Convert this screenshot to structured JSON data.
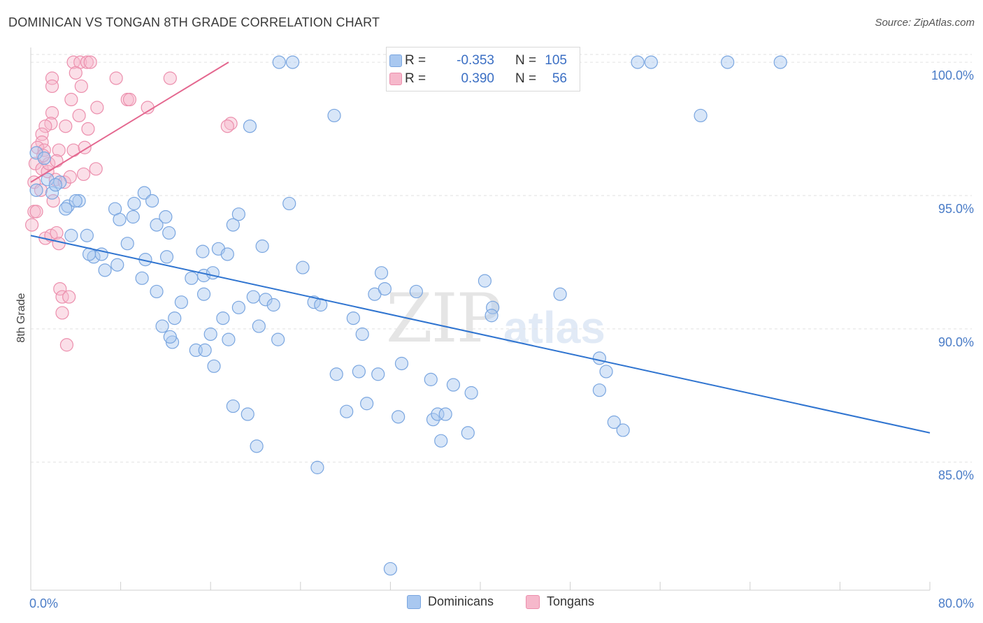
{
  "header": {
    "title": "DOMINICAN VS TONGAN 8TH GRADE CORRELATION CHART",
    "source": "Source: ZipAtlas.com"
  },
  "watermark": {
    "zip": "ZIP",
    "atlas": "atlas"
  },
  "legend_top": {
    "rows": [
      {
        "r_label": "R =",
        "r_value": "-0.353",
        "n_label": "N =",
        "n_value": "105"
      },
      {
        "r_label": "R =",
        "r_value": "0.390",
        "n_label": "N =",
        "n_value": "56"
      }
    ]
  },
  "legend_bottom": {
    "items": [
      {
        "label": "Dominicans"
      },
      {
        "label": "Tongans"
      }
    ]
  },
  "colors": {
    "blue_fill": "#a9c8f0",
    "blue_stroke": "#7aa6e0",
    "blue_line": "#2f74d0",
    "pink_fill": "#f6b8cb",
    "pink_stroke": "#ec8fad",
    "pink_line": "#e4678f",
    "tick_text": "#4a7cc7",
    "grid": "#e2e2e2"
  },
  "chart_data": {
    "type": "scatter",
    "title": "DOMINICAN VS TONGAN 8TH GRADE CORRELATION CHART",
    "xlabel": "",
    "ylabel": "8th Grade",
    "xlim": [
      0,
      80
    ],
    "ylim": [
      80.2,
      100.5
    ],
    "x_tick_labels": [
      "0.0%",
      "80.0%"
    ],
    "y_ticks": [
      85,
      90,
      95,
      100
    ],
    "y_tick_labels": [
      "85.0%",
      "90.0%",
      "95.0%",
      "100.0%"
    ],
    "grid": true,
    "legend": "bottom-center",
    "series": [
      {
        "name": "Dominicans",
        "color": "#a9c8f0",
        "r": -0.353,
        "n": 105,
        "trend": {
          "x": [
            0,
            80
          ],
          "y": [
            93.5,
            86.1
          ]
        },
        "points": [
          [
            0.5,
            96.6
          ],
          [
            0.5,
            95.2
          ],
          [
            1.2,
            96.4
          ],
          [
            1.5,
            95.6
          ],
          [
            1.9,
            95.1
          ],
          [
            2.6,
            95.5
          ],
          [
            2.2,
            95.4
          ],
          [
            3.3,
            94.6
          ],
          [
            4.3,
            94.8
          ],
          [
            3.1,
            94.5
          ],
          [
            4,
            94.8
          ],
          [
            3.6,
            93.5
          ],
          [
            5,
            93.5
          ],
          [
            5.6,
            92.7
          ],
          [
            6.3,
            92.8
          ],
          [
            5.2,
            92.8
          ],
          [
            7.5,
            94.5
          ],
          [
            7.9,
            94.1
          ],
          [
            6.6,
            92.2
          ],
          [
            7.7,
            92.4
          ],
          [
            9.2,
            94.7
          ],
          [
            9.1,
            94.2
          ],
          [
            10.1,
            95.1
          ],
          [
            10.8,
            94.8
          ],
          [
            11.2,
            93.9
          ],
          [
            8.6,
            93.2
          ],
          [
            12,
            94.2
          ],
          [
            12.3,
            93.6
          ],
          [
            10.2,
            92.6
          ],
          [
            12.1,
            92.7
          ],
          [
            9.9,
            91.9
          ],
          [
            11.2,
            91.4
          ],
          [
            13.4,
            91
          ],
          [
            14.3,
            91.9
          ],
          [
            15.4,
            92
          ],
          [
            15.4,
            91.3
          ],
          [
            15.3,
            92.9
          ],
          [
            16.7,
            93
          ],
          [
            16.2,
            92.1
          ],
          [
            18,
            93.9
          ],
          [
            18.5,
            94.3
          ],
          [
            17.5,
            92.8
          ],
          [
            11.7,
            90.1
          ],
          [
            12.8,
            90.4
          ],
          [
            12.6,
            89.5
          ],
          [
            12.4,
            89.7
          ],
          [
            14.7,
            89.2
          ],
          [
            15.5,
            89.2
          ],
          [
            16,
            89.8
          ],
          [
            17.1,
            90.4
          ],
          [
            17.6,
            89.6
          ],
          [
            18.5,
            90.8
          ],
          [
            16.3,
            88.6
          ],
          [
            18,
            87.1
          ],
          [
            19.3,
            86.8
          ],
          [
            20.1,
            85.6
          ],
          [
            19.5,
            97.6
          ],
          [
            19.8,
            91.2
          ],
          [
            20.3,
            90.1
          ],
          [
            20.9,
            91.1
          ],
          [
            22,
            89.6
          ],
          [
            21.6,
            90.9
          ],
          [
            20.6,
            93.1
          ],
          [
            23,
            94.7
          ],
          [
            24.2,
            92.3
          ],
          [
            25.2,
            91
          ],
          [
            27.2,
            88.3
          ],
          [
            28.1,
            86.9
          ],
          [
            29.2,
            88.4
          ],
          [
            29.5,
            89.8
          ],
          [
            29.9,
            87.2
          ],
          [
            25.5,
            84.8
          ],
          [
            25.8,
            90.9
          ],
          [
            28.7,
            90.4
          ],
          [
            30.6,
            91.3
          ],
          [
            30.9,
            88.3
          ],
          [
            31.2,
            92.1
          ],
          [
            31.5,
            91.5
          ],
          [
            32.7,
            86.7
          ],
          [
            33,
            88.7
          ],
          [
            34.3,
            91.4
          ],
          [
            35.6,
            88.1
          ],
          [
            35.8,
            86.6
          ],
          [
            36.2,
            86.8
          ],
          [
            38.9,
            86.1
          ],
          [
            36.9,
            86.8
          ],
          [
            36.5,
            85.8
          ],
          [
            37.6,
            87.9
          ],
          [
            39.2,
            87.6
          ],
          [
            40.4,
            91.8
          ],
          [
            41.1,
            90.8
          ],
          [
            41,
            90.5
          ],
          [
            47.1,
            91.3
          ],
          [
            50.6,
            88.9
          ],
          [
            50.6,
            87.7
          ],
          [
            51.2,
            88.4
          ],
          [
            52.7,
            86.2
          ],
          [
            51.9,
            86.5
          ],
          [
            54,
            100
          ],
          [
            55.2,
            100
          ],
          [
            62,
            100
          ],
          [
            66.7,
            100
          ],
          [
            59.6,
            98
          ],
          [
            27,
            98
          ],
          [
            32,
            81
          ],
          [
            22.1,
            100
          ],
          [
            23.3,
            100
          ]
        ]
      },
      {
        "name": "Tongans",
        "color": "#f6b8cb",
        "r": 0.39,
        "n": 56,
        "trend": {
          "x": [
            0,
            17.6
          ],
          "y": [
            95.5,
            100
          ]
        },
        "points": [
          [
            3.8,
            100
          ],
          [
            4.4,
            100
          ],
          [
            5,
            100
          ],
          [
            5.3,
            100
          ],
          [
            4,
            99.6
          ],
          [
            1.9,
            99.4
          ],
          [
            7.6,
            99.4
          ],
          [
            12.4,
            99.4
          ],
          [
            1.9,
            99.1
          ],
          [
            4.5,
            99.1
          ],
          [
            3.6,
            98.6
          ],
          [
            8.6,
            98.6
          ],
          [
            8.8,
            98.6
          ],
          [
            5.9,
            98.3
          ],
          [
            10.4,
            98.3
          ],
          [
            1.9,
            98.1
          ],
          [
            4.3,
            98
          ],
          [
            1.8,
            97.7
          ],
          [
            3.1,
            97.6
          ],
          [
            5.1,
            97.5
          ],
          [
            1.3,
            97.6
          ],
          [
            17.8,
            97.7
          ],
          [
            17.5,
            97.6
          ],
          [
            1,
            97.3
          ],
          [
            1,
            97
          ],
          [
            0.6,
            96.8
          ],
          [
            1.2,
            96.7
          ],
          [
            2.5,
            96.7
          ],
          [
            3.8,
            96.7
          ],
          [
            4.8,
            96.8
          ],
          [
            0.4,
            96.2
          ],
          [
            1,
            96
          ],
          [
            1.5,
            95.9
          ],
          [
            2.2,
            95.6
          ],
          [
            4.7,
            95.8
          ],
          [
            5.8,
            96
          ],
          [
            0.3,
            95.5
          ],
          [
            0.9,
            95.2
          ],
          [
            2,
            94.8
          ],
          [
            0.3,
            94.4
          ],
          [
            0.5,
            94.4
          ],
          [
            0.1,
            93.9
          ],
          [
            1.3,
            93.4
          ],
          [
            1.8,
            93.5
          ],
          [
            2.3,
            93.6
          ],
          [
            2.5,
            93.2
          ],
          [
            2.6,
            91.5
          ],
          [
            2.8,
            91.2
          ],
          [
            3.4,
            91.2
          ],
          [
            2.8,
            90.6
          ],
          [
            3.2,
            89.4
          ],
          [
            1.6,
            96.2
          ],
          [
            2.3,
            96.3
          ],
          [
            3,
            95.5
          ],
          [
            1.1,
            96.5
          ],
          [
            3.5,
            95.7
          ]
        ]
      }
    ]
  }
}
